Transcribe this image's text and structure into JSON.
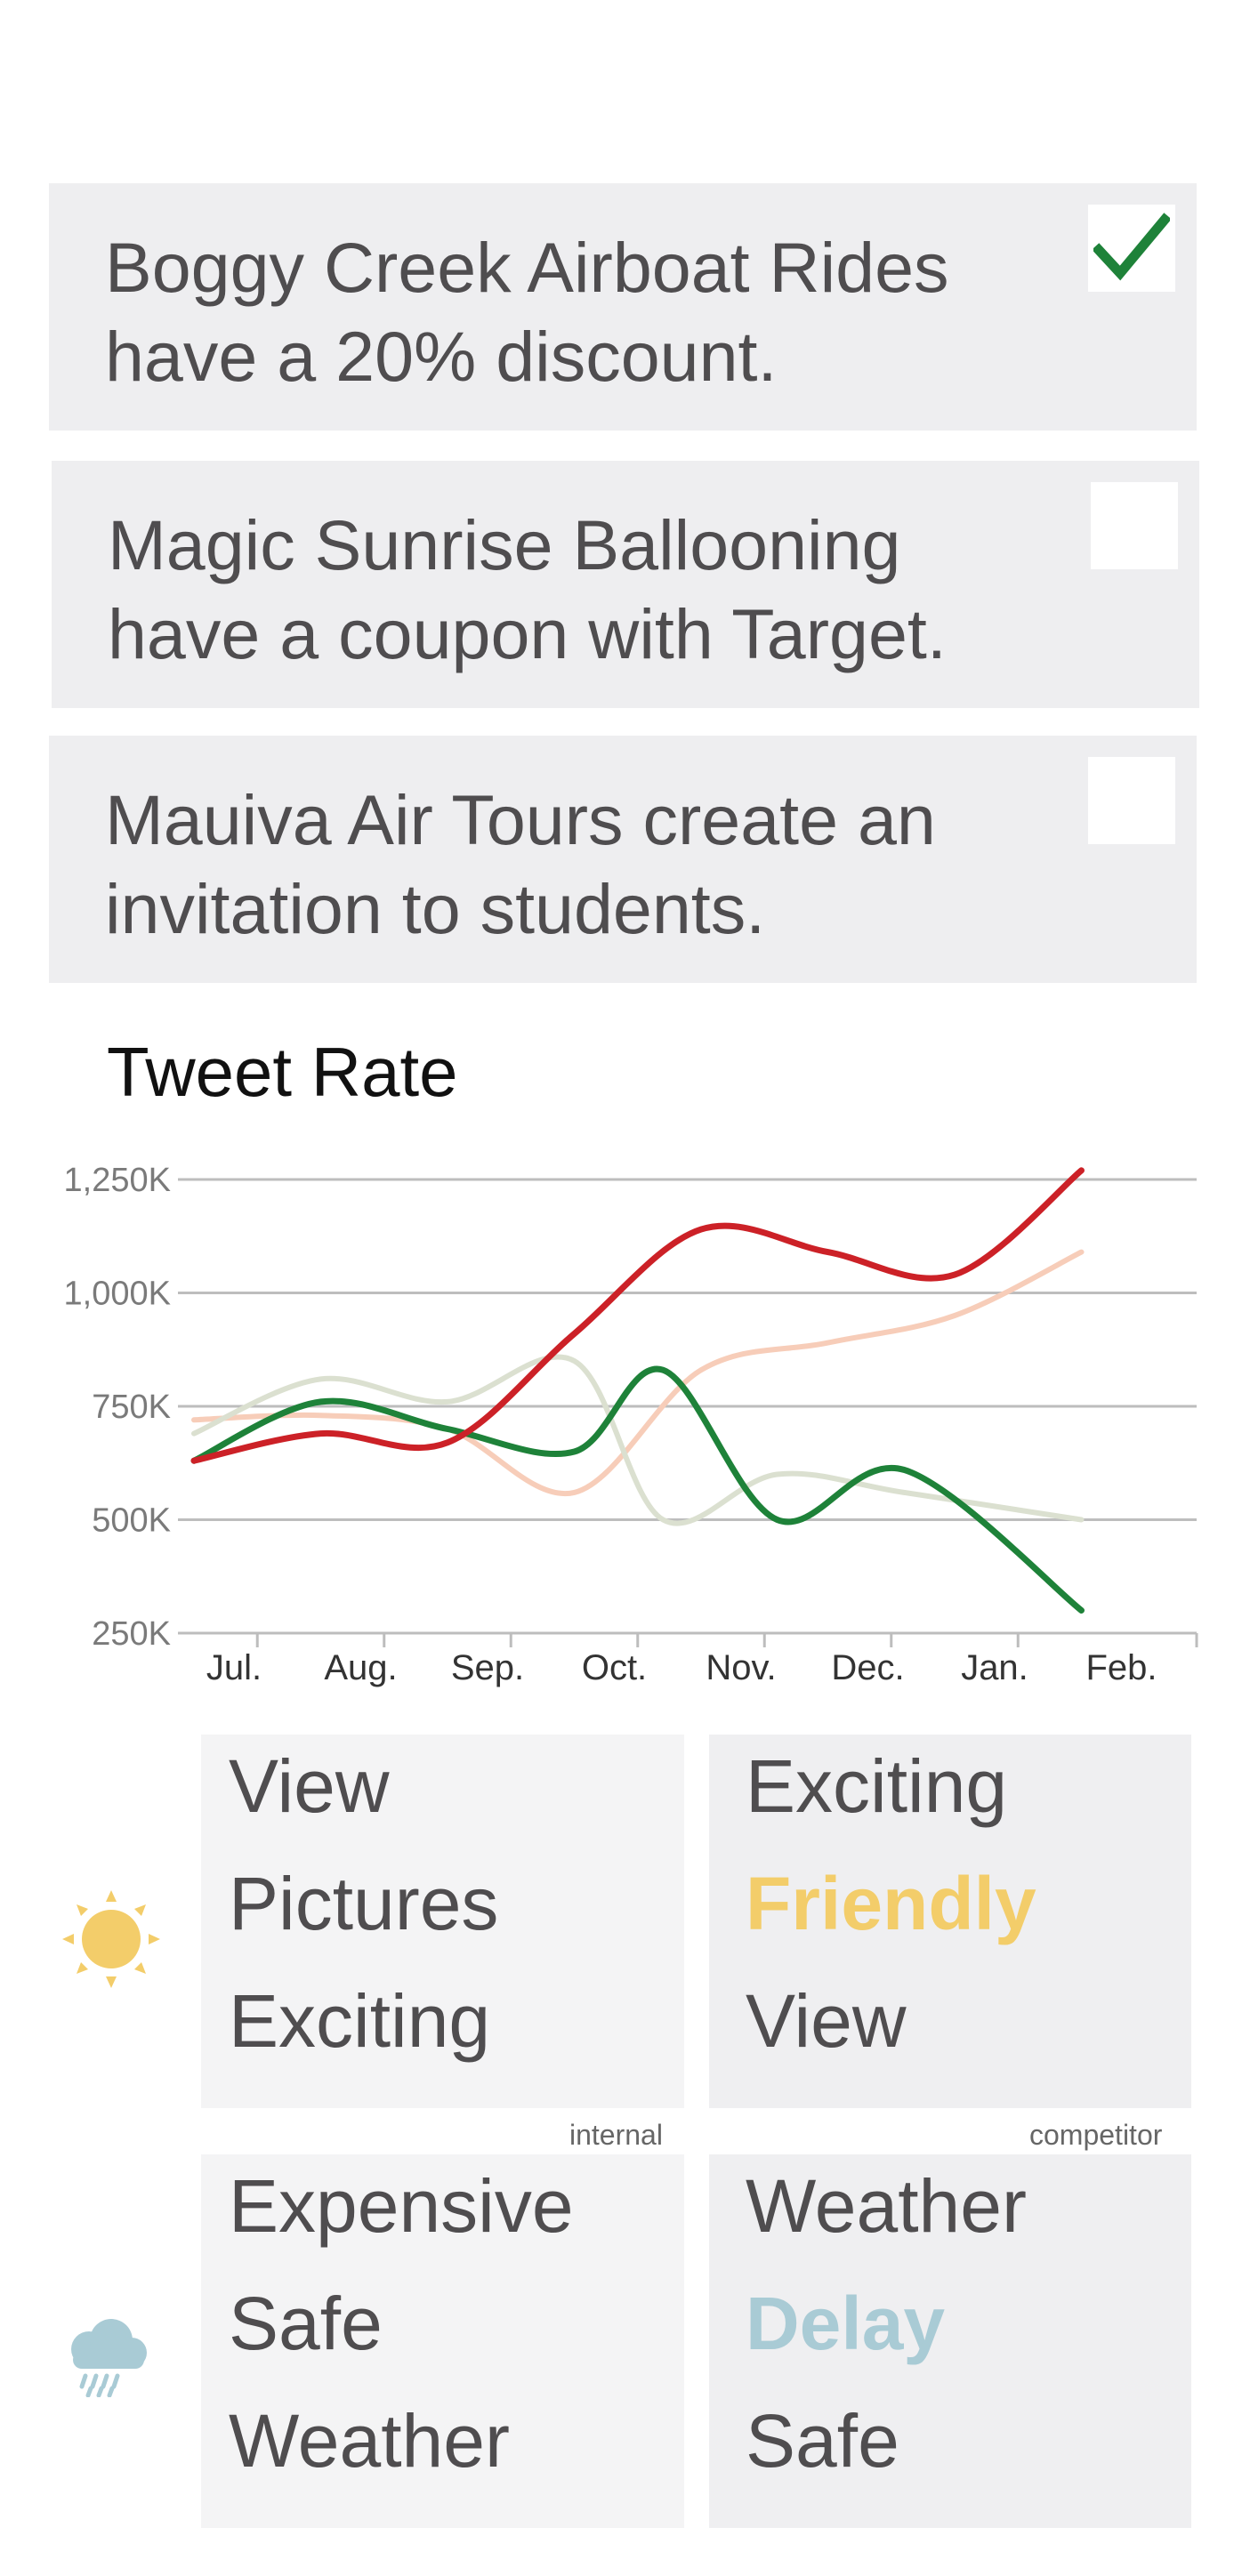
{
  "cards": [
    {
      "text_line1": "Boggy Creek Airboat Rides",
      "text_line2": "have a 20% discount.",
      "checked": true
    },
    {
      "text_line1": "Magic Sunrise Ballooning",
      "text_line2": "have a coupon with Target.",
      "checked": false
    },
    {
      "text_line1": "Mauiva Air Tours create an",
      "text_line2": "invitation to students.",
      "checked": false
    }
  ],
  "chart_data": {
    "type": "line",
    "title": "Tweet Rate",
    "xlabel": "",
    "ylabel": "",
    "categories": [
      "Jul.",
      "Aug.",
      "Sep.",
      "Oct.",
      "Nov.",
      "Dec.",
      "Jan.",
      "Feb."
    ],
    "yticks": [
      "1,250K",
      "1,000K",
      "750K",
      "500K",
      "250K"
    ],
    "ylim": [
      250,
      1250
    ],
    "grid": true,
    "series": [
      {
        "color": "#cc2127",
        "points": [
          [
            0,
            630
          ],
          [
            1,
            690
          ],
          [
            2,
            670
          ],
          [
            3,
            910
          ],
          [
            4,
            1140
          ],
          [
            5,
            1090
          ],
          [
            6,
            1040
          ],
          [
            7,
            1270
          ]
        ]
      },
      {
        "color": "#1e8239",
        "points": [
          [
            0,
            630
          ],
          [
            1,
            760
          ],
          [
            2,
            700
          ],
          [
            3,
            650
          ],
          [
            3.7,
            830
          ],
          [
            4.6,
            500
          ],
          [
            5.6,
            610
          ],
          [
            7,
            300
          ]
        ]
      },
      {
        "color": "#f7cdb9",
        "points": [
          [
            0,
            720
          ],
          [
            1,
            730
          ],
          [
            2,
            700
          ],
          [
            3,
            560
          ],
          [
            4,
            830
          ],
          [
            5,
            890
          ],
          [
            6,
            950
          ],
          [
            7,
            1090
          ]
        ]
      },
      {
        "color": "#dbe0d0",
        "points": [
          [
            0,
            690
          ],
          [
            1,
            810
          ],
          [
            2,
            760
          ],
          [
            3,
            850
          ],
          [
            3.7,
            500
          ],
          [
            4.6,
            600
          ],
          [
            5.6,
            560
          ],
          [
            7,
            500
          ]
        ]
      }
    ]
  },
  "weather": {
    "sunny": {
      "icon": "sun-icon",
      "color": "#f3cd6a"
    },
    "rainy": {
      "icon": "rain-cloud-icon",
      "color": "#a9cbd5"
    }
  },
  "boxes": {
    "internal_label": "internal",
    "competitor_label": "competitor",
    "sunny_internal": [
      "View",
      "Pictures",
      "Exciting"
    ],
    "sunny_competitor": [
      "Exciting",
      "Friendly",
      "View"
    ],
    "rainy_internal": [
      "Expensive",
      "Safe",
      "Weather"
    ],
    "rainy_competitor": [
      "Weather",
      "Delay",
      "Safe"
    ]
  },
  "colors": {
    "highlight_sunny": "#f3cd6a",
    "highlight_rainy": "#a9cbd5",
    "check": "#1e8239"
  }
}
